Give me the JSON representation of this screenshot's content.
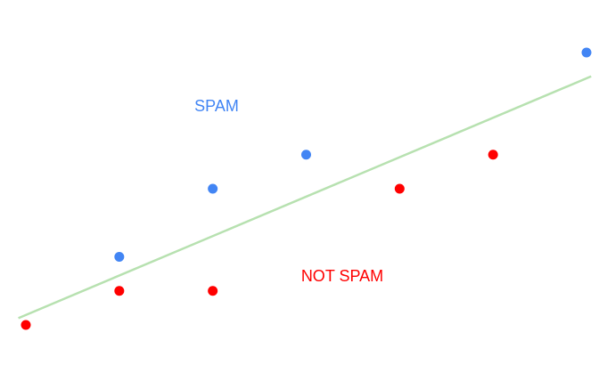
{
  "chart_data": {
    "type": "scatter",
    "title": "",
    "xlabel": "",
    "ylabel": "",
    "xlim": [
      0,
      6.2
    ],
    "ylim": [
      0,
      8.5
    ],
    "grid": false,
    "series": [
      {
        "label": "SPAM",
        "color": "#4285f4",
        "points": [
          [
            1,
            2
          ],
          [
            2,
            4
          ],
          [
            3,
            5
          ],
          [
            6,
            8
          ]
        ]
      },
      {
        "label": "NOT SPAM",
        "color": "#ff0000",
        "points": [
          [
            0,
            0
          ],
          [
            1,
            1
          ],
          [
            2,
            1
          ],
          [
            4,
            4
          ],
          [
            5,
            5
          ]
        ]
      }
    ],
    "boundary": {
      "color": "#b7e1b0",
      "points": [
        [
          -0.08,
          0.2
        ],
        [
          6.05,
          7.3
        ]
      ]
    }
  }
}
